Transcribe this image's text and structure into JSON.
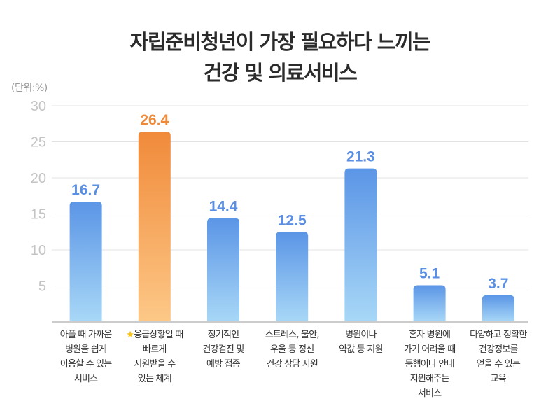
{
  "chart_data": {
    "type": "bar",
    "title": "자립준비청년이 가장 필요하다 느끼는 건강 및 의료서비스",
    "title_lines": [
      "자립준비청년이 가장 필요하다 느끼는",
      "건강 및 의료서비스"
    ],
    "unit_label": "(단위:%)",
    "xlabel": "",
    "ylabel": "",
    "ylim": [
      0,
      30
    ],
    "yticks": [
      5,
      10,
      15,
      20,
      25,
      30
    ],
    "grid": true,
    "categories": [
      "아플 때 가까운 병원을 쉽게 이용할 수 있는 서비스",
      "응급상황일 때 빠르게 지원받을 수 있는 체계",
      "정기적인 건강검진 및 예방 접종",
      "스트레스, 불안, 우울 등 정신 건강 상담 지원",
      "병원이나 약값 등 지원",
      "혼자 병원에 가기 어려울 때 동행이나 안내 지원해주는 서비스",
      "다양하고 정확한 건강정보를 얻을 수 있는 교육"
    ],
    "category_lines": [
      [
        "아플 때 가까운",
        "병원을 쉽게",
        "이용할 수 있는",
        "서비스"
      ],
      [
        "응급상황일 때",
        "빠르게",
        "지원받을 수",
        "있는 체계"
      ],
      [
        "정기적인",
        "건강검진 및",
        "예방 접종"
      ],
      [
        "스트레스, 불안,",
        "우울 등 정신",
        "건강 상담 지원"
      ],
      [
        "병원이나",
        "약값 등 지원"
      ],
      [
        "혼자 병원에",
        "가기 어려울 때",
        "동행이나 안내",
        "지원해주는",
        "서비스"
      ],
      [
        "다양하고 정확한",
        "건강정보를",
        "얻을 수 있는",
        "교육"
      ]
    ],
    "values": [
      16.7,
      26.4,
      14.4,
      12.5,
      21.3,
      5.1,
      3.7
    ],
    "value_labels": [
      "16.7",
      "26.4",
      "14.4",
      "12.5",
      "21.3",
      "5.1",
      "3.7"
    ],
    "highlight_index": 1,
    "highlight_icon": "star-icon",
    "colors": {
      "default_top": "#5b95e6",
      "default_bottom": "#a8d8f7",
      "highlight_top": "#f08a3a",
      "highlight_bottom": "#fdc887",
      "default_label": "#5b8fe3",
      "highlight_label": "#ef8a3b"
    }
  }
}
